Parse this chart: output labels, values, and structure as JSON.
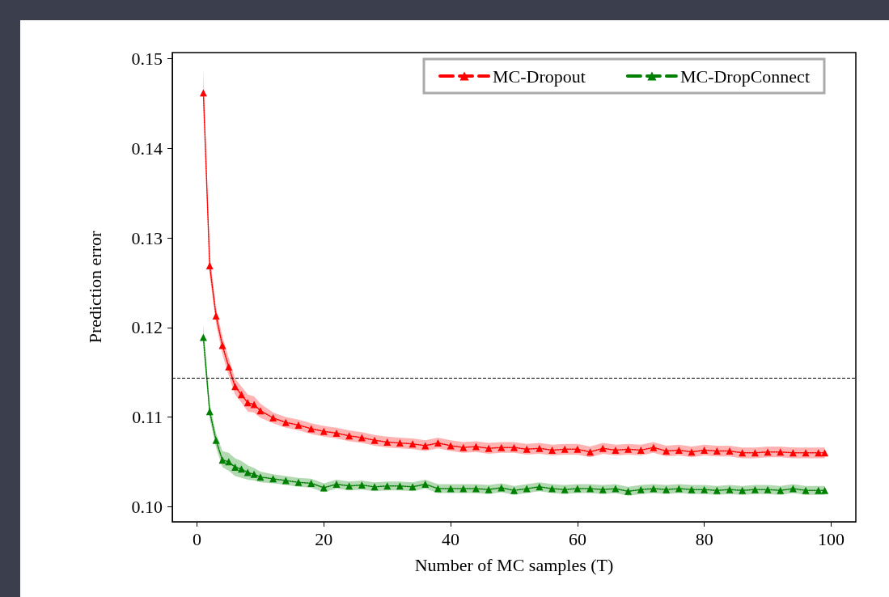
{
  "chart_data": {
    "type": "line",
    "xlabel": "Number of MC samples (T)",
    "ylabel": "Prediction error",
    "x": [
      1,
      2,
      3,
      4,
      5,
      6,
      7,
      8,
      9,
      10,
      12,
      14,
      16,
      18,
      20,
      22,
      24,
      26,
      28,
      30,
      32,
      34,
      36,
      38,
      40,
      42,
      44,
      46,
      48,
      50,
      52,
      54,
      56,
      58,
      60,
      62,
      64,
      66,
      68,
      70,
      72,
      74,
      76,
      78,
      80,
      82,
      84,
      86,
      88,
      90,
      92,
      94,
      96,
      98,
      99
    ],
    "xlim": [
      -3.9,
      103.9
    ],
    "xticks": [
      0,
      20,
      40,
      60,
      80,
      100
    ],
    "ylim": [
      0.0983,
      0.1507
    ],
    "yticks": [
      {
        "value": 0.1,
        "label": "0.10"
      },
      0.11,
      0.12,
      0.13,
      0.14,
      0.15
    ],
    "marker": "triangle",
    "line_style": "dotted",
    "legend": "top right",
    "grid": false,
    "ref_lines": [
      {
        "axis": "y",
        "value": 0.1144,
        "color": "#000000",
        "line_style": "dashed"
      }
    ],
    "series": [
      {
        "name": "MC-Dropout",
        "color": "#ff0000",
        "values": [
          0.1462,
          0.1269,
          0.1213,
          0.118,
          0.1156,
          0.1134,
          0.1125,
          0.1116,
          0.1114,
          0.1107,
          0.1099,
          0.1094,
          0.1091,
          0.1087,
          0.1084,
          0.1082,
          0.1079,
          0.1077,
          0.1074,
          0.1072,
          0.1071,
          0.107,
          0.1068,
          0.1071,
          0.1068,
          0.1066,
          0.1067,
          0.1065,
          0.1066,
          0.1066,
          0.1064,
          0.1065,
          0.1063,
          0.1064,
          0.1064,
          0.1061,
          0.1065,
          0.1063,
          0.1064,
          0.1063,
          0.1066,
          0.1062,
          0.1063,
          0.1061,
          0.1063,
          0.1062,
          0.1062,
          0.106,
          0.106,
          0.1061,
          0.1061,
          0.106,
          0.106,
          0.106,
          0.106
        ],
        "upper": [
          0.1488,
          0.1282,
          0.1222,
          0.119,
          0.1166,
          0.1143,
          0.1134,
          0.1125,
          0.1123,
          0.1115,
          0.1105,
          0.11,
          0.1097,
          0.1093,
          0.109,
          0.1088,
          0.1085,
          0.1083,
          0.108,
          0.1078,
          0.1077,
          0.1076,
          0.1074,
          0.1077,
          0.1074,
          0.1072,
          0.1073,
          0.1071,
          0.1072,
          0.1072,
          0.107,
          0.1071,
          0.1069,
          0.107,
          0.107,
          0.1067,
          0.1071,
          0.1069,
          0.107,
          0.1069,
          0.1072,
          0.1068,
          0.1069,
          0.1067,
          0.1069,
          0.1068,
          0.1068,
          0.1066,
          0.1066,
          0.1067,
          0.1067,
          0.1066,
          0.1066,
          0.1066,
          0.1066
        ],
        "lower": [
          0.1455,
          0.1258,
          0.1204,
          0.117,
          0.1146,
          0.1125,
          0.1116,
          0.1106,
          0.1105,
          0.1099,
          0.1093,
          0.1088,
          0.1085,
          0.1081,
          0.1078,
          0.1076,
          0.1073,
          0.1071,
          0.1068,
          0.1066,
          0.1065,
          0.1064,
          0.1062,
          0.1065,
          0.1062,
          0.106,
          0.1061,
          0.1059,
          0.106,
          0.106,
          0.1058,
          0.1059,
          0.1057,
          0.1058,
          0.1058,
          0.1055,
          0.1059,
          0.1057,
          0.1058,
          0.1057,
          0.106,
          0.1056,
          0.1057,
          0.1055,
          0.1057,
          0.1056,
          0.1056,
          0.1054,
          0.1054,
          0.1055,
          0.1055,
          0.1054,
          0.1054,
          0.1054,
          0.1054
        ]
      },
      {
        "name": "MC-DropConnect",
        "color": "#008000",
        "values": [
          0.1189,
          0.1106,
          0.1074,
          0.1052,
          0.105,
          0.1044,
          0.1042,
          0.1038,
          0.1036,
          0.1033,
          0.1031,
          0.1029,
          0.1027,
          0.1026,
          0.1021,
          0.1025,
          0.1023,
          0.1024,
          0.1022,
          0.1023,
          0.1023,
          0.1022,
          0.1025,
          0.102,
          0.102,
          0.102,
          0.102,
          0.1019,
          0.1021,
          0.1018,
          0.102,
          0.1022,
          0.102,
          0.1019,
          0.102,
          0.102,
          0.1019,
          0.102,
          0.1017,
          0.1019,
          0.102,
          0.1019,
          0.102,
          0.1019,
          0.1019,
          0.1018,
          0.1019,
          0.1018,
          0.1019,
          0.1019,
          0.1018,
          0.102,
          0.1018,
          0.1018,
          0.1018
        ],
        "upper": [
          0.1203,
          0.1115,
          0.1082,
          0.1062,
          0.106,
          0.1054,
          0.1051,
          0.1046,
          0.1043,
          0.1039,
          0.1036,
          0.1034,
          0.1032,
          0.1031,
          0.1026,
          0.103,
          0.1028,
          0.1029,
          0.1027,
          0.1028,
          0.1028,
          0.1027,
          0.103,
          0.1025,
          0.1025,
          0.1025,
          0.1025,
          0.1024,
          0.1026,
          0.1023,
          0.1025,
          0.1027,
          0.1025,
          0.1024,
          0.1025,
          0.1025,
          0.1024,
          0.1025,
          0.1022,
          0.1024,
          0.1025,
          0.1024,
          0.1025,
          0.1024,
          0.1024,
          0.1023,
          0.1024,
          0.1023,
          0.1024,
          0.1024,
          0.1023,
          0.1025,
          0.1023,
          0.1023,
          0.1023
        ],
        "lower": [
          0.1176,
          0.1098,
          0.1066,
          0.1044,
          0.104,
          0.1034,
          0.1032,
          0.103,
          0.1029,
          0.1027,
          0.1026,
          0.1024,
          0.1022,
          0.1021,
          0.1016,
          0.102,
          0.1018,
          0.1019,
          0.1017,
          0.1018,
          0.1018,
          0.1017,
          0.102,
          0.1015,
          0.1015,
          0.1015,
          0.1015,
          0.1014,
          0.1016,
          0.1013,
          0.1015,
          0.1017,
          0.1015,
          0.1014,
          0.1015,
          0.1015,
          0.1014,
          0.1015,
          0.1012,
          0.1014,
          0.1015,
          0.1014,
          0.1015,
          0.1014,
          0.1014,
          0.1013,
          0.1014,
          0.1013,
          0.1014,
          0.1014,
          0.1013,
          0.1015,
          0.1013,
          0.1013,
          0.1013
        ]
      }
    ]
  }
}
